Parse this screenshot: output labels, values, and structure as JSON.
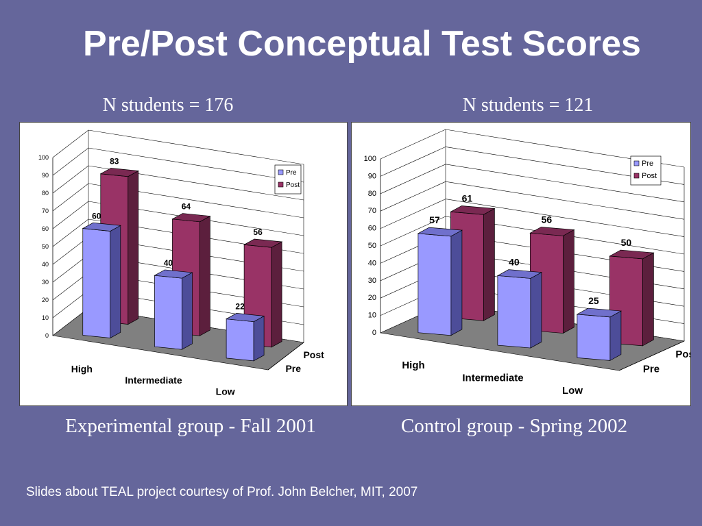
{
  "slide": {
    "title": "Pre/Post Conceptual Test Scores",
    "credit": "Slides about TEAL project courtesy of Prof. John Belcher, MIT, 2007"
  },
  "colors": {
    "background": "#65669b",
    "pre_face": "#9999ff",
    "pre_side": "#4d4d99",
    "pre_top": "#7070cc",
    "post_face": "#993366",
    "post_side": "#5c1f3d",
    "post_top": "#7a2952",
    "floor": "#808080"
  },
  "panels": [
    {
      "n_label": "N students = 176",
      "caption": "Experimental group - Fall 2001"
    },
    {
      "n_label": "N students = 121",
      "caption": "Control group - Spring 2002"
    }
  ],
  "chart_data": [
    {
      "type": "bar",
      "categories": [
        "High",
        "Intermediate",
        "Low"
      ],
      "depth_labels": [
        "Post",
        "Pre"
      ],
      "series": [
        {
          "name": "Pre",
          "values": [
            60,
            40,
            22
          ]
        },
        {
          "name": "Post",
          "values": [
            83,
            64,
            56
          ]
        }
      ],
      "yticks": [
        "0",
        "10",
        "20",
        "30",
        "40",
        "50",
        "60",
        "70",
        "80",
        "90",
        "100"
      ],
      "ylim": [
        0,
        100
      ],
      "legend_position": "top-right",
      "grid": true
    },
    {
      "type": "bar",
      "categories": [
        "High",
        "Intermediate",
        "Low"
      ],
      "depth_labels": [
        "Post",
        "Pre"
      ],
      "series": [
        {
          "name": "Pre",
          "values": [
            57,
            40,
            25
          ]
        },
        {
          "name": "Post",
          "values": [
            61,
            56,
            50
          ]
        }
      ],
      "yticks": [
        "0",
        "10",
        "20",
        "30",
        "40",
        "50",
        "60",
        "70",
        "80",
        "90",
        "100"
      ],
      "ylim": [
        0,
        100
      ],
      "legend_position": "top-right",
      "grid": true
    }
  ]
}
